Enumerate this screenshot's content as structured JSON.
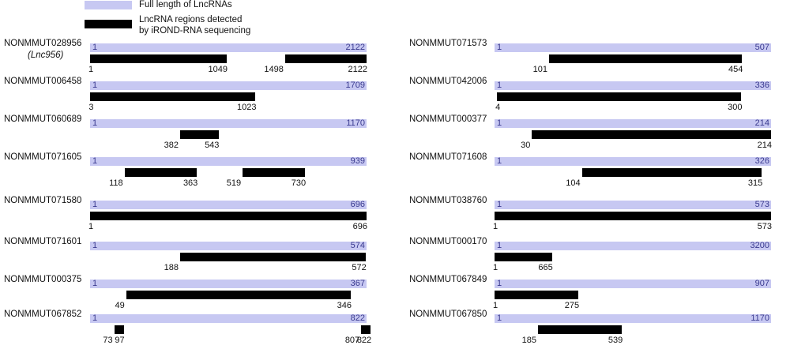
{
  "legend": {
    "full_label": "Full length of LncRNAs",
    "region_label_line1": "LncRNA  regions detected",
    "region_label_line2": "by iROND-RNA sequencing",
    "full_color": "#c7c8f2",
    "region_color": "#000000"
  },
  "lncrnas": [
    {
      "name": "NONMMUT028956",
      "alias": "(Lnc956)",
      "start": "1",
      "end": "2122",
      "regions": [
        {
          "start": "1",
          "end": "1049"
        },
        {
          "start": "1498",
          "end": "2122"
        }
      ]
    },
    {
      "name": "NONMMUT006458",
      "start": "1",
      "end": "1709",
      "regions": [
        {
          "start": "3",
          "end": "1023"
        }
      ]
    },
    {
      "name": "NONMMUT060689",
      "start": "1",
      "end": "1170",
      "regions": [
        {
          "start": "382",
          "end": "543"
        }
      ]
    },
    {
      "name": "NONMMUT071605",
      "start": "1",
      "end": "939",
      "regions": [
        {
          "start": "118",
          "end": "363"
        },
        {
          "start": "519",
          "end": "730"
        }
      ]
    },
    {
      "name": "NONMMUT071580",
      "start": "1",
      "end": "696",
      "regions": [
        {
          "start": "1",
          "end": "696"
        }
      ]
    },
    {
      "name": "NONMMUT071601",
      "start": "1",
      "end": "574",
      "regions": [
        {
          "start": "188",
          "end": "572"
        }
      ]
    },
    {
      "name": "NONMMUT000375",
      "start": "1",
      "end": "367",
      "regions": [
        {
          "start": "49",
          "end": "346"
        }
      ]
    },
    {
      "name": "NONMMUT067852",
      "start": "1",
      "end": "822",
      "regions": [
        {
          "start": "73",
          "end": "97"
        },
        {
          "start": "807",
          "end": "822"
        }
      ]
    },
    {
      "name": "NONMMUT071573",
      "start": "1",
      "end": "507",
      "regions": [
        {
          "start": "101",
          "end": "454"
        }
      ]
    },
    {
      "name": "NONMMUT042006",
      "start": "1",
      "end": "336",
      "regions": [
        {
          "start": "4",
          "end": "300"
        }
      ]
    },
    {
      "name": "NONMMUT000377",
      "start": "1",
      "end": "214",
      "regions": [
        {
          "start": "30",
          "end": "214"
        }
      ]
    },
    {
      "name": "NONMMUT071608",
      "start": "1",
      "end": "326",
      "regions": [
        {
          "start": "104",
          "end": "315"
        }
      ]
    },
    {
      "name": "NONMMUT038760",
      "start": "1",
      "end": "573",
      "regions": [
        {
          "start": "1",
          "end": "573"
        }
      ]
    },
    {
      "name": "NONMMUT000170",
      "start": "1",
      "end": "3200",
      "regions": [
        {
          "start": "1",
          "end": "665"
        }
      ]
    },
    {
      "name": "NONMMUT067849",
      "start": "1",
      "end": "907",
      "regions": [
        {
          "start": "1",
          "end": "275"
        }
      ]
    },
    {
      "name": "NONMMUT067850",
      "start": "1",
      "end": "1170",
      "regions": [
        {
          "start": "185",
          "end": "539"
        }
      ]
    }
  ]
}
